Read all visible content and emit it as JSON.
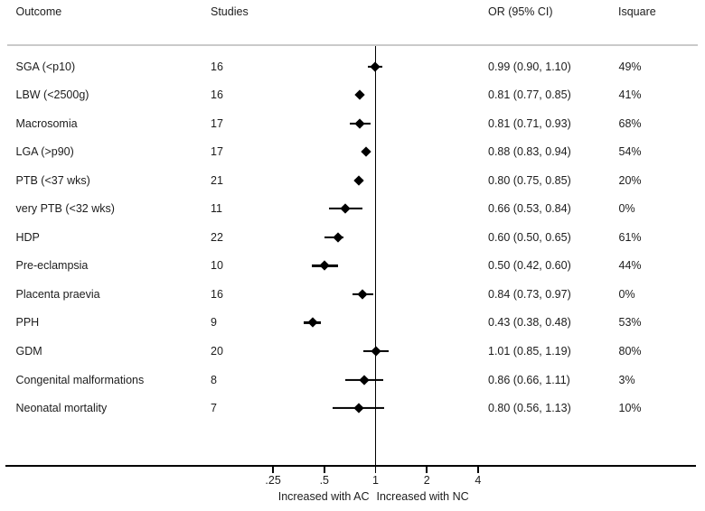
{
  "header": {
    "outcome": "Outcome",
    "studies": "Studies",
    "or_ci": "OR (95% CI)",
    "isquare": "Isquare"
  },
  "chart_data": {
    "type": "scatter",
    "subtype": "forest-plot",
    "title": "",
    "xlabel_left": "Increased with AC",
    "xlabel_right": "Increased with NC",
    "x_axis": {
      "scale": "log2",
      "ticks": [
        0.25,
        0.5,
        1,
        2,
        4
      ],
      "tick_labels": [
        ".25",
        ".5",
        "1",
        "2",
        "4"
      ],
      "reference_line": 1,
      "xlim": [
        0.2,
        5
      ]
    },
    "rows": [
      {
        "outcome": "SGA (<p10)",
        "studies": "16",
        "or": 0.99,
        "ci_low": 0.9,
        "ci_high": 1.1,
        "or_text": "0.99 (0.90, 1.10)",
        "isquare": "49%"
      },
      {
        "outcome": "LBW (<2500g)",
        "studies": "16",
        "or": 0.81,
        "ci_low": 0.77,
        "ci_high": 0.85,
        "or_text": "0.81 (0.77, 0.85)",
        "isquare": "41%"
      },
      {
        "outcome": "Macrosomia",
        "studies": "17",
        "or": 0.81,
        "ci_low": 0.71,
        "ci_high": 0.93,
        "or_text": "0.81 (0.71, 0.93)",
        "isquare": "68%"
      },
      {
        "outcome": "LGA (>p90)",
        "studies": "17",
        "or": 0.88,
        "ci_low": 0.83,
        "ci_high": 0.94,
        "or_text": "0.88 (0.83, 0.94)",
        "isquare": "54%"
      },
      {
        "outcome": "PTB (<37 wks)",
        "studies": "21",
        "or": 0.8,
        "ci_low": 0.75,
        "ci_high": 0.85,
        "or_text": "0.80 (0.75, 0.85)",
        "isquare": "20%"
      },
      {
        "outcome": "very PTB (<32 wks)",
        "studies": "11",
        "or": 0.66,
        "ci_low": 0.53,
        "ci_high": 0.84,
        "or_text": "0.66 (0.53, 0.84)",
        "isquare": "0%"
      },
      {
        "outcome": "HDP",
        "studies": "22",
        "or": 0.6,
        "ci_low": 0.5,
        "ci_high": 0.65,
        "or_text": "0.60 (0.50, 0.65)",
        "isquare": "61%"
      },
      {
        "outcome": "Pre-eclampsia",
        "studies": "10",
        "or": 0.5,
        "ci_low": 0.42,
        "ci_high": 0.6,
        "or_text": "0.50 (0.42, 0.60)",
        "isquare": "44%"
      },
      {
        "outcome": "Placenta praevia",
        "studies": "16",
        "or": 0.84,
        "ci_low": 0.73,
        "ci_high": 0.97,
        "or_text": "0.84 (0.73, 0.97)",
        "isquare": "0%"
      },
      {
        "outcome": "PPH",
        "studies": "9",
        "or": 0.43,
        "ci_low": 0.38,
        "ci_high": 0.48,
        "or_text": "0.43 (0.38, 0.48)",
        "isquare": "53%"
      },
      {
        "outcome": "GDM",
        "studies": "20",
        "or": 1.01,
        "ci_low": 0.85,
        "ci_high": 1.19,
        "or_text": "1.01 (0.85, 1.19)",
        "isquare": "80%"
      },
      {
        "outcome": "Congenital malformations",
        "studies": "8",
        "or": 0.86,
        "ci_low": 0.66,
        "ci_high": 1.11,
        "or_text": "0.86 (0.66, 1.11)",
        "isquare": "3%"
      },
      {
        "outcome": "Neonatal mortality",
        "studies": "7",
        "or": 0.8,
        "ci_low": 0.56,
        "ci_high": 1.13,
        "or_text": "0.80 (0.56, 1.13)",
        "isquare": "10%"
      }
    ],
    "legend": null,
    "grid": false
  },
  "colors": {
    "background": "#ffffff",
    "text": "#1c1c1c",
    "marker": "#000000",
    "axis": "#000000",
    "separator": "#cacaca"
  }
}
